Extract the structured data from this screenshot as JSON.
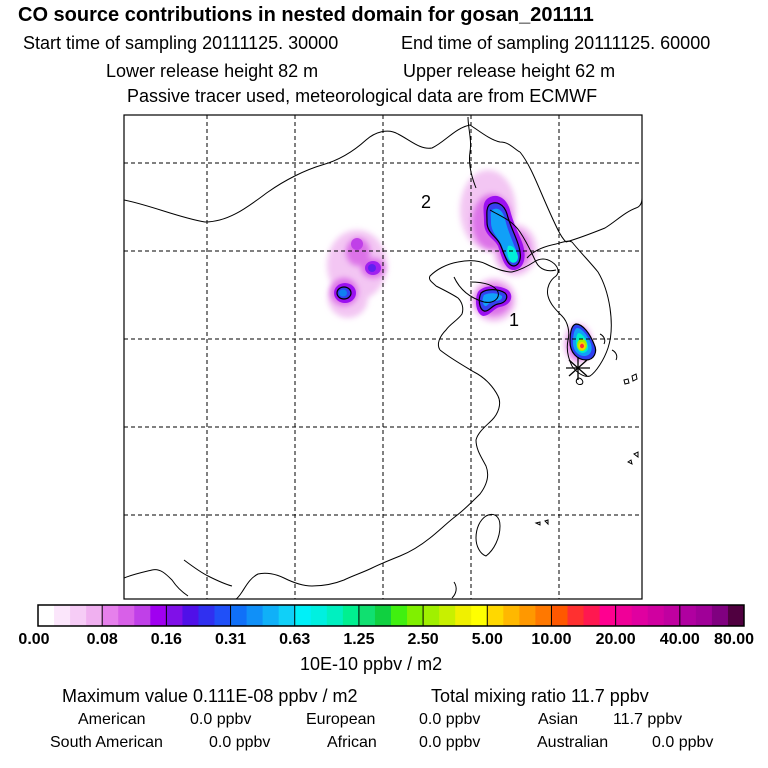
{
  "header": {
    "title": "CO  source contributions in nested domain for gosan_201111",
    "start_label": "Start time of sampling 20111125. 30000",
    "end_label": "End time of sampling 20111125. 60000",
    "lower_label": "Lower release height   82 m",
    "upper_label": "Upper release height   62 m",
    "tracer_note": "Passive tracer used, meteorological data are from ECMWF"
  },
  "map": {
    "region_labels": [
      "2",
      "1"
    ],
    "receptor_marker": "asterisk-icon"
  },
  "colorbar": {
    "colors": [
      "#ffffff",
      "#fbe6fb",
      "#f6ccf6",
      "#f0b0f0",
      "#e680ec",
      "#d860e8",
      "#c040e8",
      "#a000f0",
      "#8010e8",
      "#5010e8",
      "#3030f0",
      "#2050f8",
      "#1070f8",
      "#1090f8",
      "#10b0f8",
      "#10d0f8",
      "#00f0f8",
      "#00f0e0",
      "#00f0c0",
      "#00f090",
      "#10e070",
      "#10d040",
      "#40f010",
      "#80f000",
      "#a0f000",
      "#c8f000",
      "#f0f000",
      "#ffff00",
      "#ffd800",
      "#ffb800",
      "#ff9800",
      "#ff7800",
      "#ff5800",
      "#ff3030",
      "#ff1850",
      "#ff0090",
      "#f00098",
      "#e000a0",
      "#d000a0",
      "#c000a0",
      "#b000a0",
      "#a00098",
      "#800080",
      "#500040"
    ],
    "tick_labels": [
      "0.00",
      "0.08",
      "0.16",
      "0.31",
      "0.63",
      "1.25",
      "2.50",
      "5.00",
      "10.00",
      "20.00",
      "40.00",
      "80.00"
    ],
    "unit_label": "10E-10 ppbv / m2"
  },
  "summary": {
    "max_text": "Maximum value  0.111E-08 ppbv / m2",
    "total_text": "Total mixing ratio       11.7 ppbv",
    "american_label": "American",
    "american_value": "0.0 ppbv",
    "european_label": "European",
    "european_value": "0.0 ppbv",
    "asian_label": "Asian",
    "asian_value": "11.7 ppbv",
    "south_american_label": "South American",
    "south_american_value": "0.0 ppbv",
    "african_label": "African",
    "african_value": "0.0 ppbv",
    "australian_label": "Australian",
    "australian_value": "0.0 ppbv"
  }
}
